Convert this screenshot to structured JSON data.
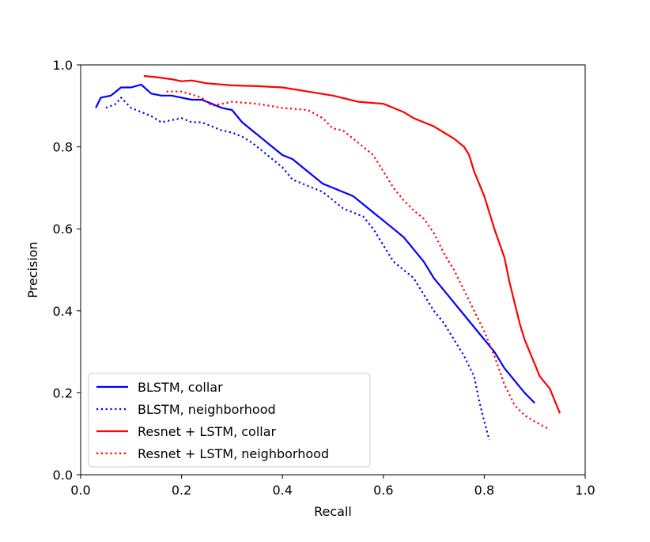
{
  "chart_data": {
    "type": "line",
    "title": "",
    "xlabel": "Recall",
    "ylabel": "Precision",
    "xlim": [
      0.0,
      1.0
    ],
    "ylim": [
      0.0,
      1.0
    ],
    "xticks": [
      "0.0",
      "0.2",
      "0.4",
      "0.6",
      "0.8",
      "1.0"
    ],
    "yticks": [
      "0.0",
      "0.2",
      "0.4",
      "0.6",
      "0.8",
      "1.0"
    ],
    "grid": false,
    "legend_position": "lower-left",
    "series": [
      {
        "name": "BLSTM, collar",
        "color": "#0000ff",
        "style": "solid",
        "x": [
          0.03,
          0.04,
          0.06,
          0.08,
          0.1,
          0.12,
          0.14,
          0.16,
          0.18,
          0.2,
          0.22,
          0.24,
          0.26,
          0.28,
          0.3,
          0.32,
          0.34,
          0.36,
          0.38,
          0.4,
          0.42,
          0.44,
          0.46,
          0.48,
          0.5,
          0.52,
          0.54,
          0.56,
          0.58,
          0.6,
          0.62,
          0.64,
          0.66,
          0.68,
          0.7,
          0.72,
          0.74,
          0.76,
          0.78,
          0.8,
          0.82,
          0.84,
          0.86,
          0.88,
          0.9
        ],
        "y": [
          0.895,
          0.92,
          0.925,
          0.945,
          0.945,
          0.952,
          0.93,
          0.925,
          0.925,
          0.92,
          0.915,
          0.915,
          0.905,
          0.895,
          0.89,
          0.86,
          0.84,
          0.82,
          0.8,
          0.78,
          0.77,
          0.75,
          0.73,
          0.71,
          0.7,
          0.69,
          0.68,
          0.66,
          0.64,
          0.62,
          0.6,
          0.58,
          0.55,
          0.52,
          0.48,
          0.45,
          0.42,
          0.39,
          0.36,
          0.33,
          0.3,
          0.26,
          0.23,
          0.2,
          0.175
        ]
      },
      {
        "name": "BLSTM, neighborhood",
        "color": "#0000ff",
        "style": "dotted",
        "x": [
          0.05,
          0.07,
          0.08,
          0.1,
          0.12,
          0.14,
          0.16,
          0.18,
          0.2,
          0.22,
          0.24,
          0.26,
          0.28,
          0.3,
          0.32,
          0.34,
          0.36,
          0.38,
          0.4,
          0.42,
          0.44,
          0.46,
          0.48,
          0.5,
          0.52,
          0.54,
          0.56,
          0.58,
          0.6,
          0.62,
          0.64,
          0.66,
          0.68,
          0.7,
          0.72,
          0.74,
          0.76,
          0.78,
          0.79,
          0.8,
          0.81
        ],
        "y": [
          0.895,
          0.905,
          0.92,
          0.895,
          0.885,
          0.875,
          0.86,
          0.865,
          0.87,
          0.86,
          0.86,
          0.85,
          0.84,
          0.835,
          0.825,
          0.81,
          0.79,
          0.77,
          0.75,
          0.72,
          0.71,
          0.7,
          0.69,
          0.67,
          0.65,
          0.64,
          0.63,
          0.6,
          0.56,
          0.52,
          0.5,
          0.48,
          0.44,
          0.4,
          0.37,
          0.33,
          0.29,
          0.24,
          0.18,
          0.13,
          0.085
        ]
      },
      {
        "name": "Resnet + LSTM, collar",
        "color": "#ff0000",
        "style": "solid",
        "x": [
          0.125,
          0.15,
          0.18,
          0.2,
          0.22,
          0.25,
          0.3,
          0.35,
          0.4,
          0.45,
          0.5,
          0.55,
          0.6,
          0.62,
          0.64,
          0.66,
          0.68,
          0.7,
          0.72,
          0.74,
          0.76,
          0.77,
          0.78,
          0.79,
          0.8,
          0.82,
          0.84,
          0.85,
          0.86,
          0.87,
          0.88,
          0.89,
          0.9,
          0.91,
          0.93,
          0.95
        ],
        "y": [
          0.973,
          0.97,
          0.965,
          0.96,
          0.962,
          0.955,
          0.95,
          0.948,
          0.945,
          0.935,
          0.925,
          0.91,
          0.905,
          0.895,
          0.885,
          0.87,
          0.86,
          0.85,
          0.835,
          0.82,
          0.8,
          0.78,
          0.74,
          0.71,
          0.68,
          0.6,
          0.53,
          0.47,
          0.42,
          0.37,
          0.33,
          0.3,
          0.27,
          0.24,
          0.21,
          0.15
        ]
      },
      {
        "name": "Resnet + LSTM, neighborhood",
        "color": "#ff0000",
        "style": "dotted",
        "x": [
          0.17,
          0.2,
          0.24,
          0.26,
          0.3,
          0.35,
          0.4,
          0.45,
          0.48,
          0.5,
          0.52,
          0.54,
          0.56,
          0.58,
          0.6,
          0.62,
          0.64,
          0.66,
          0.68,
          0.7,
          0.72,
          0.74,
          0.76,
          0.78,
          0.8,
          0.82,
          0.84,
          0.86,
          0.88,
          0.9,
          0.93
        ],
        "y": [
          0.935,
          0.935,
          0.92,
          0.9,
          0.91,
          0.905,
          0.895,
          0.89,
          0.87,
          0.845,
          0.84,
          0.82,
          0.8,
          0.78,
          0.74,
          0.7,
          0.67,
          0.645,
          0.625,
          0.59,
          0.54,
          0.5,
          0.45,
          0.4,
          0.35,
          0.29,
          0.22,
          0.17,
          0.145,
          0.13,
          0.11
        ]
      }
    ]
  }
}
